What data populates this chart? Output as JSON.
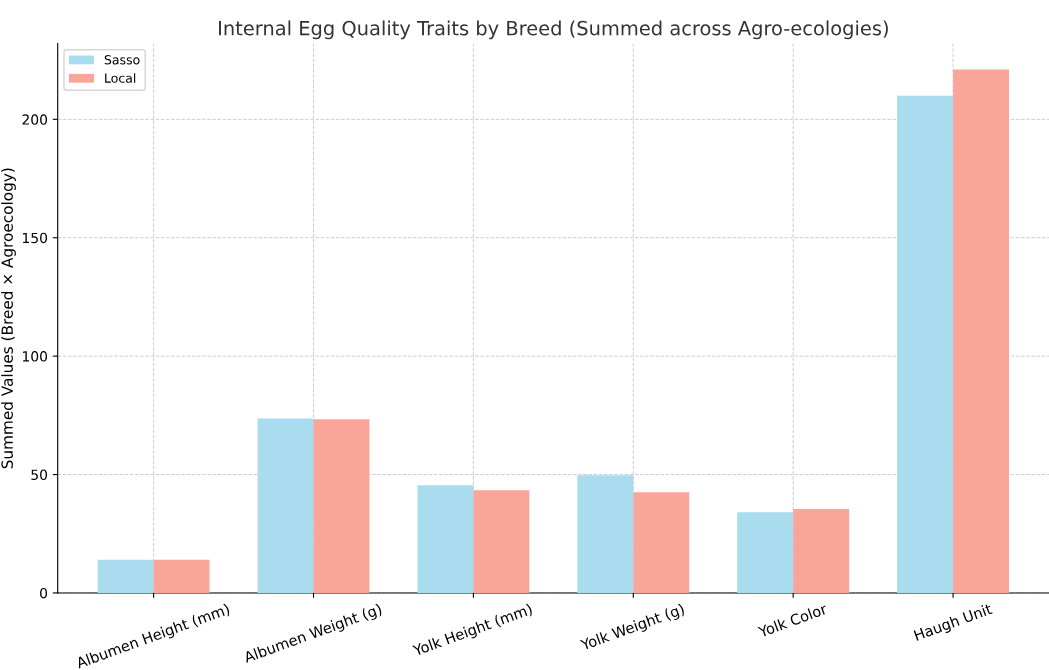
{
  "chart_data": {
    "type": "bar",
    "title": "Internal Egg Quality Traits by Breed (Summed across Agro-ecologies)",
    "ylabel": "Summed Values (Breed × Agroecology)",
    "categories": [
      "Albumen Height (mm)",
      "Albumen Weight (g)",
      "Yolk Height (mm)",
      "Yolk Weight (g)",
      "Yolk Color",
      "Haugh Unit"
    ],
    "series": [
      {
        "name": "Sasso",
        "color": "#a8dcee",
        "values": [
          14,
          73.7,
          45.5,
          49.7,
          34.1,
          210
        ]
      },
      {
        "name": "Local",
        "color": "#f9a59a",
        "values": [
          14,
          73.3,
          43.4,
          42.5,
          35.4,
          221
        ]
      }
    ],
    "ylim": [
      0,
      232
    ],
    "yticks": [
      0,
      50,
      100,
      150,
      200
    ],
    "grid": true,
    "legend": "top left"
  }
}
